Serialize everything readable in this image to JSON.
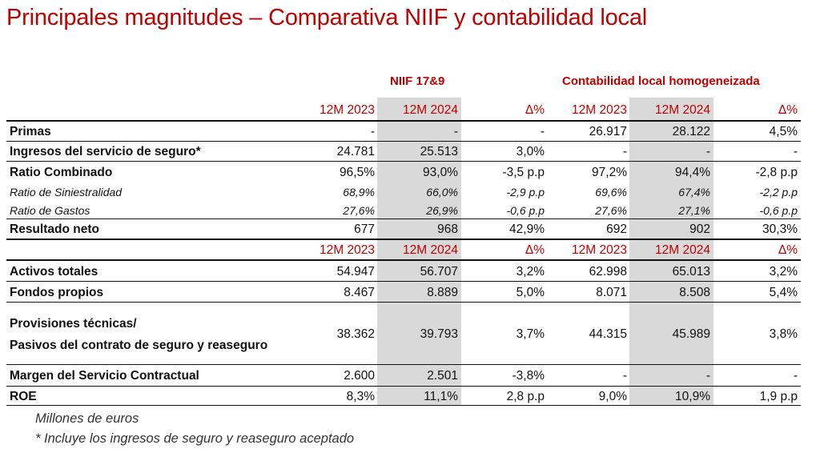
{
  "title": "Principales magnitudes – Comparativa NIIF y contabilidad local",
  "groups": {
    "niif": "NIIF 17&9",
    "local": "Contabilidad local homogeneizada"
  },
  "period_headers": [
    "12M 2023",
    "12M 2024",
    "Δ%",
    "12M 2023",
    "12M 2024",
    "Δ%"
  ],
  "rows": [
    {
      "label": "Primas",
      "values": [
        "-",
        "-",
        "-",
        "26.917",
        "28.122",
        "4,5%"
      ]
    },
    {
      "label": "Ingresos del servicio de seguro*",
      "values": [
        "24.781",
        "25.513",
        "3,0%",
        "-",
        "-",
        "-"
      ]
    },
    {
      "label": "Ratio Combinado",
      "values": [
        "96,5%",
        "93,0%",
        "-3,5 p.p",
        "97,2%",
        "94,4%",
        "-2,8 p.p"
      ]
    },
    {
      "label": "Ratio de Siniestralidad",
      "values": [
        "68,9%",
        "66,0%",
        "-2,9 p.p",
        "69,6%",
        "67,4%",
        "-2,2 p.p"
      ]
    },
    {
      "label": "Ratio de Gastos",
      "values": [
        "27,6%",
        "26,9%",
        "-0,6 p.p",
        "27,6%",
        "27,1%",
        "-0,6 p.p"
      ]
    },
    {
      "label": "Resultado neto",
      "values": [
        "677",
        "968",
        "42,9%",
        "692",
        "902",
        "30,3%"
      ]
    },
    {
      "label": "Activos totales",
      "values": [
        "54.947",
        "56.707",
        "3,2%",
        "62.998",
        "65.013",
        "3,2%"
      ]
    },
    {
      "label": "Fondos propios",
      "values": [
        "8.467",
        "8.889",
        "5,0%",
        "8.071",
        "8.508",
        "5,4%"
      ]
    },
    {
      "label_line1": "Provisiones técnicas/",
      "label_line2": "Pasivos del contrato de seguro y reaseguro",
      "values": [
        "38.362",
        "39.793",
        "3,7%",
        "44.315",
        "45.989",
        "3,8%"
      ]
    },
    {
      "label": "Margen del Servicio Contractual",
      "values": [
        "2.600",
        "2.501",
        "-3,8%",
        "-",
        "-",
        "-"
      ]
    },
    {
      "label": "ROE",
      "values": [
        "8,3%",
        "11,1%",
        "2,8 p.p",
        "9,0%",
        "10,9%",
        "1,9 p.p"
      ]
    }
  ],
  "footnotes": {
    "unit": "Millones de euros",
    "note": "* Incluye los ingresos de seguro y reaseguro aceptado"
  }
}
